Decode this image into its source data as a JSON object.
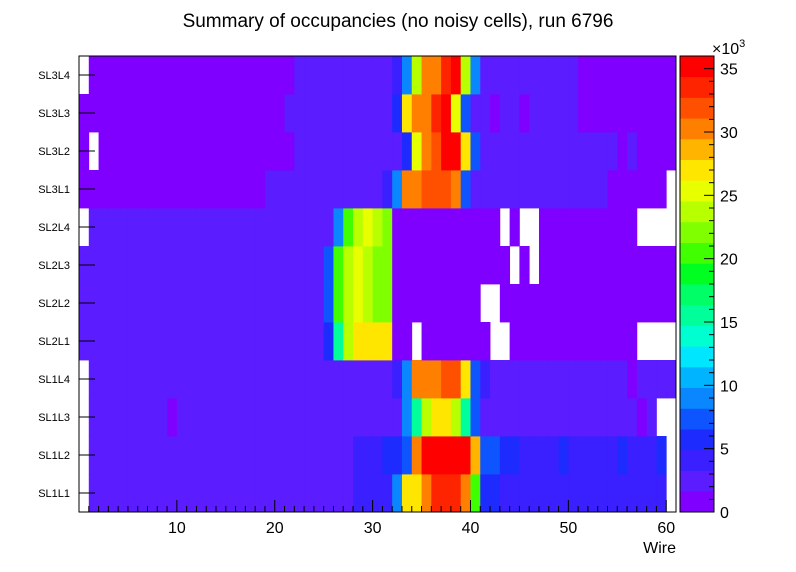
{
  "chart_data": {
    "type": "heatmap",
    "title": "Summary of occupancies (no noisy cells), run 6796",
    "xlabel": "Wire",
    "ylabel": "",
    "xlim": [
      0,
      61
    ],
    "x_ticks": [
      "10",
      "20",
      "30",
      "40",
      "50",
      "60"
    ],
    "layers": [
      "SL1L1",
      "SL1L2",
      "SL1L3",
      "SL1L4",
      "SL2L1",
      "SL2L2",
      "SL2L3",
      "SL2L4",
      "SL3L1",
      "SL3L2",
      "SL3L3",
      "SL3L4"
    ],
    "z_range": [
      0,
      36000
    ],
    "z_multiplier_label": "×10",
    "z_multiplier_exp": "3",
    "z_ticks": [
      "0",
      "5",
      "10",
      "15",
      "20",
      "25",
      "30",
      "35"
    ],
    "palette": [
      "#8000ff",
      "#5b1cff",
      "#3a1fff",
      "#1e2bff",
      "#0e55ff",
      "#0a86ff",
      "#00b4ff",
      "#00e6ff",
      "#00ffd0",
      "#00ff9a",
      "#00ff66",
      "#00ff20",
      "#40ff00",
      "#80ff00",
      "#b8ff00",
      "#e8ff00",
      "#ffe600",
      "#ffb400",
      "#ff8000",
      "#ff5000",
      "#ff2400",
      "#ff0000"
    ],
    "values": [
      [
        0,
        2.5,
        2.5,
        2.5,
        2.5,
        2.5,
        2.5,
        2.5,
        2.5,
        2.5,
        2.5,
        2.5,
        2.5,
        2.5,
        2.5,
        2.5,
        2.5,
        2.5,
        2.5,
        2.5,
        2.5,
        2.5,
        2.5,
        2.5,
        2.5,
        2.5,
        2.5,
        2.5,
        3.5,
        3.5,
        3.5,
        3.5,
        9,
        27,
        27,
        30,
        33,
        33,
        33,
        30,
        21,
        6,
        6,
        3.5,
        3.5,
        3.5,
        3.5,
        3.5,
        3.5,
        3.5,
        3.5,
        3.5,
        3.5,
        3.5,
        3.5,
        3.5,
        3.5,
        3.5,
        3.5,
        3.5,
        0
      ],
      [
        0,
        2.5,
        2.5,
        2.5,
        2.5,
        2.5,
        2.5,
        2.5,
        2.5,
        2.5,
        2.5,
        2.5,
        2.5,
        2.5,
        2.5,
        2.5,
        2.5,
        2.5,
        2.5,
        2.5,
        2.5,
        2.5,
        2.5,
        2.5,
        2.5,
        2.5,
        2.5,
        2.5,
        3.5,
        3.5,
        3.5,
        5,
        5,
        7.5,
        30,
        36,
        36,
        36,
        36,
        36,
        28,
        7.5,
        7.5,
        5,
        5,
        3.5,
        3.5,
        3.5,
        3.5,
        5,
        3.5,
        3.5,
        3.5,
        3.5,
        3.5,
        5,
        3.5,
        3.5,
        3.5,
        5,
        0
      ],
      [
        0,
        2.5,
        2.5,
        2.5,
        2.5,
        2.5,
        2.5,
        2.5,
        2.5,
        1.2,
        2.5,
        2.5,
        2.5,
        2.5,
        2.5,
        2.5,
        2.5,
        2.5,
        2.5,
        2.5,
        2.5,
        2.5,
        2.5,
        2.5,
        2.5,
        2.5,
        2.5,
        2.5,
        2.5,
        2.5,
        2.5,
        2.5,
        2.5,
        9,
        16,
        24,
        27,
        27,
        24,
        16,
        7,
        2.5,
        2.5,
        2.5,
        2.5,
        2.5,
        2.5,
        2.5,
        2.5,
        2.5,
        2.5,
        2.5,
        2.5,
        2.5,
        2.5,
        2.5,
        2.5,
        1.2,
        2.5,
        0,
        0
      ],
      [
        0,
        2.5,
        2.5,
        2.5,
        2.5,
        2.5,
        2.5,
        2.5,
        2.5,
        2.5,
        2.5,
        2.5,
        2.5,
        2.5,
        2.5,
        2.5,
        2.5,
        2.5,
        2.5,
        2.5,
        2.5,
        2.5,
        2.5,
        2.5,
        2.5,
        2.5,
        2.5,
        2.5,
        2.5,
        2.5,
        2.5,
        2.5,
        3.5,
        9,
        30,
        30,
        30,
        32,
        32,
        27,
        7,
        3.5,
        2.5,
        2.5,
        2.5,
        2.5,
        2.5,
        2.5,
        2.5,
        2.5,
        2.5,
        2.5,
        2.5,
        2.5,
        2.5,
        2.5,
        1.2,
        2.5,
        2.5,
        2.5,
        2.5
      ],
      [
        2.5,
        2.5,
        2.5,
        2.5,
        2.5,
        2.5,
        2.5,
        2.5,
        2.5,
        2.5,
        2.5,
        2.5,
        2.5,
        2.5,
        2.5,
        2.5,
        2.5,
        2.5,
        2.5,
        2.5,
        2.5,
        2.5,
        2.5,
        2.5,
        2.5,
        6,
        16,
        24,
        27,
        27,
        27,
        27,
        1.2,
        1.2,
        0,
        1.2,
        1.2,
        1.2,
        1.2,
        1.2,
        1.2,
        1.2,
        0,
        0,
        1.2,
        1.2,
        1.2,
        1.2,
        1.2,
        1.2,
        1.2,
        1.2,
        1.2,
        1.2,
        1.2,
        1.2,
        1.2,
        0,
        0,
        0,
        0
      ],
      [
        2.5,
        2.5,
        2.5,
        2.5,
        2.5,
        2.5,
        2.5,
        2.5,
        2.5,
        2.5,
        2.5,
        2.5,
        2.5,
        2.5,
        2.5,
        2.5,
        2.5,
        2.5,
        2.5,
        2.5,
        2.5,
        2.5,
        2.5,
        2.5,
        2.5,
        7,
        20,
        24,
        26,
        24,
        22,
        22,
        1.2,
        1.2,
        1.2,
        1.2,
        1.2,
        1.2,
        1.2,
        1.2,
        1.2,
        0,
        0,
        1.2,
        1.2,
        1.2,
        1.2,
        1.2,
        1.2,
        1.2,
        1.2,
        1.2,
        1.2,
        1.2,
        1.2,
        1.2,
        1.2,
        1.2,
        1.2,
        1.2,
        1.2
      ],
      [
        2.5,
        2.5,
        2.5,
        2.5,
        2.5,
        2.5,
        2.5,
        2.5,
        2.5,
        2.5,
        2.5,
        2.5,
        2.5,
        2.5,
        2.5,
        2.5,
        2.5,
        2.5,
        2.5,
        2.5,
        2.5,
        2.5,
        2.5,
        2.5,
        2.5,
        7,
        20,
        24,
        26,
        24,
        22,
        22,
        1.2,
        1.2,
        1.2,
        1.2,
        1.2,
        1.2,
        1.2,
        1.2,
        1.2,
        1.2,
        1.2,
        1.2,
        0,
        1.2,
        0,
        1.2,
        1.2,
        1.2,
        1.2,
        1.2,
        1.2,
        1.2,
        1.2,
        1.2,
        1.2,
        1.2,
        1.2,
        1.2,
        1.2
      ],
      [
        0,
        2.5,
        2.5,
        2.5,
        2.5,
        2.5,
        2.5,
        2.5,
        2.5,
        2.5,
        2.5,
        2.5,
        2.5,
        2.5,
        2.5,
        2.5,
        2.5,
        2.5,
        2.5,
        2.5,
        2.5,
        2.5,
        2.5,
        2.5,
        2.5,
        2.5,
        9,
        20,
        24,
        26,
        24,
        22,
        1.2,
        1.2,
        1.2,
        1.2,
        1.2,
        1.2,
        1.2,
        1.2,
        1.2,
        1.2,
        1.2,
        0,
        1.2,
        0,
        0,
        1.2,
        1.2,
        1.2,
        1.2,
        1.2,
        1.2,
        1.2,
        1.2,
        1.2,
        1.2,
        0,
        0,
        0,
        0
      ],
      [
        1.2,
        1.2,
        1.2,
        1.2,
        1.2,
        1.2,
        1.2,
        1.2,
        1.2,
        1.2,
        1.2,
        1.2,
        1.2,
        1.2,
        1.2,
        1.2,
        1.2,
        1.2,
        1.2,
        2.5,
        2.5,
        2.5,
        2.5,
        2.5,
        2.5,
        2.5,
        2.5,
        2.5,
        2.5,
        2.5,
        2.5,
        3.5,
        9,
        30,
        30,
        32,
        32,
        32,
        30,
        7,
        2.5,
        2.5,
        2.5,
        2.5,
        2.5,
        2.5,
        2.5,
        2.5,
        2.5,
        2.5,
        2.5,
        2.5,
        2.5,
        2.5,
        1.2,
        1.2,
        1.2,
        1.2,
        1.2,
        1.2,
        0
      ],
      [
        1.2,
        0,
        1.2,
        1.2,
        1.2,
        1.2,
        1.2,
        1.2,
        1.2,
        1.2,
        1.2,
        1.2,
        1.2,
        1.2,
        1.2,
        1.2,
        1.2,
        1.2,
        1.2,
        1.2,
        1.2,
        1.2,
        2.5,
        2.5,
        2.5,
        2.5,
        2.5,
        2.5,
        2.5,
        2.5,
        2.5,
        2.5,
        2.5,
        6,
        26,
        30,
        32,
        35,
        35,
        27,
        7,
        2.5,
        2.5,
        2.5,
        2.5,
        2.5,
        2.5,
        2.5,
        2.5,
        2.5,
        2.5,
        2.5,
        2.5,
        2.5,
        2.5,
        1.2,
        2.5,
        1.2,
        1.2,
        1.2,
        1.2
      ],
      [
        1.2,
        1.2,
        1.2,
        1.2,
        1.2,
        1.2,
        1.2,
        1.2,
        1.2,
        1.2,
        1.2,
        1.2,
        1.2,
        1.2,
        1.2,
        1.2,
        1.2,
        1.2,
        1.2,
        1.2,
        1.2,
        2.5,
        2.5,
        2.5,
        2.5,
        2.5,
        2.5,
        2.5,
        2.5,
        2.5,
        2.5,
        2.5,
        6,
        27,
        30,
        30,
        34,
        35,
        26,
        7,
        2.5,
        2.5,
        1.2,
        2.5,
        2.5,
        1.2,
        2.5,
        2.5,
        2.5,
        2.5,
        2.5,
        1.2,
        1.2,
        1.2,
        1.2,
        1.2,
        1.2,
        1.2,
        1.2,
        1.2,
        1.2
      ],
      [
        0,
        1.2,
        1.2,
        1.2,
        1.2,
        1.2,
        1.2,
        1.2,
        1.2,
        1.2,
        1.2,
        1.2,
        1.2,
        1.2,
        1.2,
        1.2,
        1.2,
        1.2,
        1.2,
        1.2,
        1.2,
        1.2,
        2.5,
        2.5,
        2.5,
        2.5,
        2.5,
        2.5,
        2.5,
        2.5,
        2.5,
        2.5,
        3.5,
        9,
        24,
        30,
        30,
        34,
        35,
        24,
        9,
        2.5,
        2.5,
        2.5,
        2.5,
        2.5,
        2.5,
        2.5,
        2.5,
        2.5,
        2.5,
        1.2,
        1.2,
        1.2,
        1.2,
        1.2,
        1.2,
        1.2,
        1.2,
        1.2,
        1.2
      ]
    ]
  }
}
